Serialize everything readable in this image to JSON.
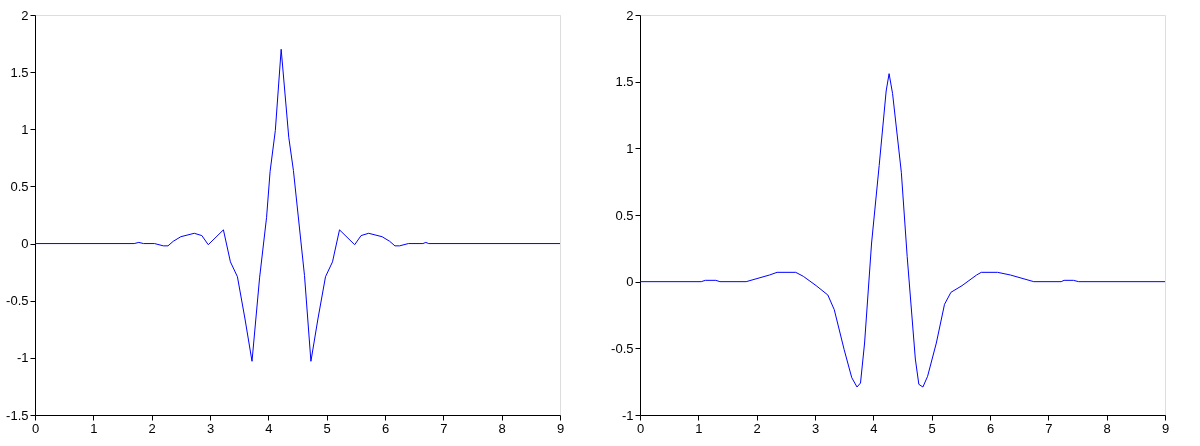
{
  "chart_data": [
    {
      "type": "line",
      "xlim": [
        0,
        9
      ],
      "xticks": [
        0,
        1,
        2,
        3,
        4,
        5,
        6,
        7,
        8,
        9
      ],
      "ylim": [
        -1.5,
        2
      ],
      "yticks": [
        -1.5,
        -1,
        -0.5,
        0,
        0.5,
        1,
        1.5,
        2
      ],
      "grid": false,
      "series": [
        {
          "color": "#0000ff",
          "x": [
            0,
            1.7,
            1.78,
            1.86,
            2.05,
            2.2,
            2.28,
            2.37,
            2.5,
            2.73,
            2.86,
            2.97,
            3.23,
            3.35,
            3.47,
            3.6,
            3.72,
            3.85,
            3.97,
            4.03,
            4.12,
            4.22,
            4.35,
            4.43,
            4.62,
            4.73,
            4.85,
            4.98,
            5.1,
            5.22,
            5.48,
            5.59,
            5.72,
            5.95,
            6.08,
            6.17,
            6.25,
            6.4,
            6.65,
            6.7,
            6.75,
            9
          ],
          "values": [
            0,
            0,
            0.01,
            0,
            0,
            -0.02,
            -0.02,
            0.02,
            0.06,
            0.09,
            0.07,
            -0.01,
            0.12,
            -0.16,
            -0.29,
            -0.66,
            -1.03,
            -0.3,
            0.23,
            0.63,
            0.99,
            1.7,
            0.93,
            0.64,
            -0.28,
            -1.03,
            -0.66,
            -0.29,
            -0.16,
            0.12,
            -0.01,
            0.07,
            0.09,
            0.06,
            0.02,
            -0.02,
            -0.02,
            0,
            0,
            0.01,
            0,
            0
          ]
        }
      ]
    },
    {
      "type": "line",
      "xlim": [
        0,
        9
      ],
      "xticks": [
        0,
        1,
        2,
        3,
        4,
        5,
        6,
        7,
        8,
        9
      ],
      "ylim": [
        -1,
        2
      ],
      "yticks": [
        -1,
        -0.5,
        0,
        0.5,
        1,
        1.5,
        2
      ],
      "grid": false,
      "series": [
        {
          "color": "#0000ff",
          "x": [
            0,
            1.05,
            1.12,
            1.3,
            1.37,
            1.82,
            2.22,
            2.35,
            2.67,
            2.8,
            3.02,
            3.22,
            3.33,
            3.5,
            3.63,
            3.72,
            3.78,
            3.85,
            3.97,
            4.1,
            4.22,
            4.27,
            4.33,
            4.48,
            4.58,
            4.72,
            4.78,
            4.85,
            4.93,
            5.08,
            5.22,
            5.33,
            5.52,
            5.77,
            5.85,
            6.13,
            6.35,
            6.75,
            7.22,
            7.27,
            7.43,
            7.52,
            9
          ],
          "values": [
            0,
            0,
            0.01,
            0.01,
            0,
            0,
            0.05,
            0.07,
            0.07,
            0.04,
            -0.03,
            -0.1,
            -0.21,
            -0.51,
            -0.72,
            -0.79,
            -0.76,
            -0.46,
            0.29,
            0.87,
            1.43,
            1.56,
            1.41,
            0.82,
            0.19,
            -0.58,
            -0.77,
            -0.79,
            -0.71,
            -0.46,
            -0.17,
            -0.08,
            -0.03,
            0.05,
            0.07,
            0.07,
            0.05,
            0,
            0,
            0.01,
            0.01,
            0,
            0
          ]
        }
      ]
    }
  ]
}
